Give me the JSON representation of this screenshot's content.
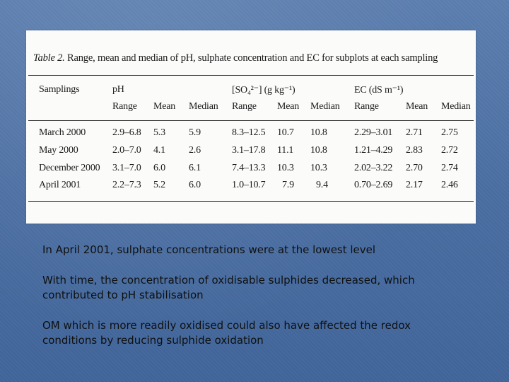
{
  "table": {
    "caption_label": "Table 2.",
    "caption_text": "Range, mean and median of pH, sulphate concentration and EC for subplots at each sampling",
    "headers": {
      "samplings": "Samplings",
      "ph": "pH",
      "sulphate": "[SO₄²⁻] (g kg⁻¹)",
      "ec": "EC (dS m⁻¹)"
    },
    "subheaders": [
      "Range",
      "Mean",
      "Median",
      "Range",
      "Mean",
      "Median",
      "Range",
      "Mean",
      "Median"
    ],
    "rows": [
      [
        "March 2000",
        "2.9–6.8",
        "5.3",
        "5.9",
        "8.3–12.5",
        "10.7",
        "10.8",
        "2.29–3.01",
        "2.71",
        "2.75"
      ],
      [
        "May 2000",
        "2.0–7.0",
        "4.1",
        "2.6",
        "3.1–17.8",
        "11.1",
        "10.8",
        "1.21–4.29",
        "2.83",
        "2.72"
      ],
      [
        "December 2000",
        "3.1–7.0",
        "6.0",
        "6.1",
        "7.4–13.3",
        "10.3",
        "10.3",
        "2.02–3.22",
        "2.70",
        "2.74"
      ],
      [
        "April 2001",
        "2.2–7.3",
        "5.2",
        "6.0",
        "1.0–10.7",
        "7.9",
        "9.4",
        "0.70–2.69",
        "2.17",
        "2.46"
      ]
    ]
  },
  "bullets": [
    "In April 2001, sulphate concentrations were at the lowest level",
    "With time, the concentration of oxidisable sulphides decreased, which contributed to pH stabilisation",
    "OM which is more readily oxidised could also have affected the redox conditions by reducing sulphide oxidation"
  ]
}
